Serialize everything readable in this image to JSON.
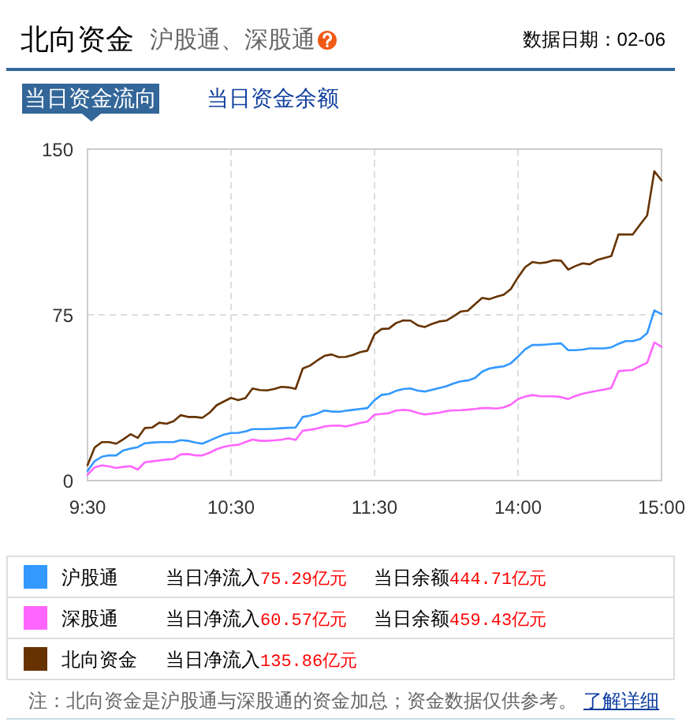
{
  "chart_data": {
    "type": "line",
    "title": "北向资金",
    "subtitle": "沪股通、深股通",
    "categories": [
      "9:30",
      null,
      null,
      null,
      null,
      null,
      null,
      null,
      null,
      null,
      null,
      null,
      null,
      null,
      null,
      null,
      null,
      null,
      null,
      null,
      "10:30",
      null,
      null,
      null,
      null,
      null,
      null,
      null,
      null,
      null,
      null,
      null,
      null,
      null,
      null,
      null,
      null,
      null,
      null,
      null,
      "11:30",
      null,
      null,
      null,
      null,
      null,
      null,
      null,
      null,
      null,
      null,
      null,
      null,
      null,
      null,
      null,
      null,
      null,
      null,
      null,
      "14:00",
      null,
      null,
      null,
      null,
      null,
      null,
      null,
      null,
      null,
      null,
      null,
      null,
      null,
      null,
      null,
      null,
      null,
      null,
      null,
      "15:00"
    ],
    "ylim": [
      0,
      150
    ],
    "yticks": [
      0,
      75,
      150
    ],
    "grid": true,
    "legend": "bottom",
    "series": [
      {
        "name": "沪股通",
        "color": "#3399ff",
        "values": [
          4.3,
          8.8,
          10.8,
          11.4,
          11.4,
          13.7,
          14.5,
          15.1,
          16.9,
          17.2,
          17.4,
          17.4,
          17.4,
          18.3,
          18.0,
          17.2,
          16.7,
          18.1,
          19.5,
          20.8,
          21.5,
          21.6,
          22.2,
          23.3,
          23.3,
          23.3,
          23.5,
          23.7,
          23.9,
          24,
          28.8,
          29.4,
          30.3,
          31.7,
          31.3,
          31.1,
          31.6,
          32.0,
          32.4,
          32.8,
          36.4,
          38.8,
          39.2,
          40.6,
          41.4,
          41.7,
          40.7,
          40.3,
          41.1,
          41.9,
          42.7,
          43.9,
          44.9,
          45.3,
          46.4,
          49.3,
          50.7,
          51.3,
          51.7,
          53.1,
          56.1,
          59.4,
          61.4,
          61.4,
          61.6,
          61.9,
          62.1,
          59,
          59,
          59.3,
          59.8,
          59.8,
          59.8,
          60.3,
          61.9,
          63.1,
          63.1,
          64.0,
          66.7,
          77,
          75.3
        ]
      },
      {
        "name": "深股通",
        "color": "#ff66ff",
        "values": [
          2.6,
          6.0,
          6.9,
          6.4,
          5.7,
          6.2,
          6.5,
          5.0,
          8.3,
          8.7,
          9.1,
          9.5,
          9.8,
          11.9,
          12.0,
          11.4,
          11.4,
          12.6,
          14.2,
          15.3,
          15.9,
          16.2,
          17.4,
          18.6,
          18.0,
          18.0,
          18.2,
          18.5,
          19.1,
          18.4,
          22.6,
          23.0,
          23.6,
          24.5,
          24.8,
          24.9,
          24.5,
          25.3,
          26.1,
          26.7,
          29.8,
          30.2,
          30.5,
          31.7,
          32.0,
          31.7,
          30.6,
          29.9,
          30.3,
          30.7,
          31.4,
          31.8,
          31.9,
          32.1,
          32.4,
          32.8,
          32.8,
          32.6,
          33.1,
          34.4,
          36.9,
          38.0,
          38.7,
          38.2,
          38.1,
          38.1,
          37.8,
          36.9,
          38.3,
          39.3,
          40,
          40.6,
          41.2,
          41.9,
          49.5,
          49.8,
          50.1,
          51.8,
          53.3,
          62.5,
          60.6
        ]
      },
      {
        "name": "北向资金",
        "color": "#663300",
        "values": [
          7,
          15.0,
          17.4,
          17.4,
          16.7,
          18.7,
          21,
          19.3,
          23.8,
          24,
          26.2,
          25.7,
          26.9,
          29.6,
          28.8,
          28.8,
          28.4,
          30.7,
          34.1,
          35.8,
          37.4,
          36.4,
          37.3,
          41.7,
          41,
          40.8,
          41.4,
          42.4,
          42.2,
          41.5,
          50.7,
          52.0,
          54.3,
          56.4,
          57.1,
          55.9,
          56.0,
          56.9,
          58.1,
          58.8,
          66.2,
          68.6,
          68.8,
          71.3,
          72.5,
          72.4,
          70.3,
          69.5,
          70.9,
          72.0,
          72.4,
          74.3,
          76.5,
          76.9,
          79.8,
          82.7,
          82.1,
          83.2,
          84.1,
          86.7,
          92.0,
          96.6,
          98.9,
          98.4,
          98.8,
          99.7,
          99.5,
          95.5,
          97.1,
          98.3,
          97.9,
          99.8,
          100.7,
          101.6,
          111.4,
          111.4,
          111.4,
          115.8,
          120.0,
          140,
          135.9
        ]
      }
    ],
    "annotations": [
      "数据日期：02-06",
      "当日资金流向",
      "当日资金余额",
      "当日净流入75.29亿元",
      "当日余额444.71亿元",
      "当日净流入60.57亿元",
      "当日余额459.43亿元",
      "当日净流入135.86亿元",
      "注：北向资金是沪股通与深股通的资金加总；资金数据仅供参考。",
      "了解详细"
    ]
  }
}
